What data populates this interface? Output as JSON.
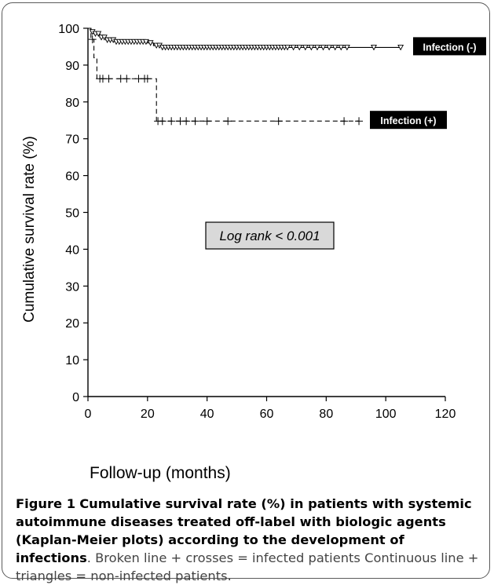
{
  "chart_data": {
    "type": "line",
    "ylabel": "Cumulative survival rate (%)",
    "xlabel": "Follow-up (months)",
    "xlim": [
      0,
      120
    ],
    "ylim": [
      0,
      100
    ],
    "x_ticks": [
      "0",
      "20",
      "40",
      "60",
      "80",
      "100",
      "120"
    ],
    "y_ticks": [
      "0",
      "10",
      "20",
      "30",
      "40",
      "50",
      "60",
      "70",
      "80",
      "90",
      "100"
    ],
    "grid": false,
    "legend": "labels at line ends",
    "annotation": "Log rank < 0.001",
    "series": [
      {
        "name": "Infection (-)",
        "style": "solid",
        "marker": "triangle",
        "steps": [
          [
            0,
            100
          ],
          [
            1,
            99
          ],
          [
            2,
            98.5
          ],
          [
            4,
            97.5
          ],
          [
            6,
            96.8
          ],
          [
            9,
            96.3
          ],
          [
            20,
            96
          ],
          [
            22,
            95.3
          ],
          [
            25,
            94.8
          ]
        ],
        "end_x": 105,
        "censored_x": [
          1.5,
          2.5,
          3.5,
          4.5,
          5.5,
          6.5,
          7.5,
          8.5,
          9.5,
          10.5,
          11.5,
          12.5,
          13.5,
          14.5,
          15.5,
          16.5,
          17.5,
          18.5,
          19.5,
          21,
          23,
          24,
          25,
          26,
          27,
          28,
          29,
          30,
          31,
          32,
          33,
          34,
          35,
          36,
          37,
          38,
          39,
          40,
          41,
          42,
          43,
          44,
          45,
          46,
          47,
          48,
          49,
          50,
          51,
          52,
          53,
          54,
          55,
          56,
          57,
          58,
          59,
          60,
          61,
          62,
          63,
          64,
          65,
          66,
          67,
          69,
          71,
          73,
          75,
          77,
          79,
          81,
          83,
          85,
          87,
          96,
          105
        ]
      },
      {
        "name": "Infection (+)",
        "style": "dashed",
        "marker": "cross",
        "steps": [
          [
            0,
            100
          ],
          [
            1,
            97
          ],
          [
            2,
            92
          ],
          [
            3,
            86.3
          ],
          [
            23,
            74.8
          ]
        ],
        "end_x": 91,
        "censored_x": [
          1.5,
          4,
          5,
          7,
          11,
          13,
          17,
          19,
          20,
          23.5,
          25,
          28,
          31,
          33,
          36,
          40,
          47,
          64,
          86,
          91
        ]
      }
    ]
  },
  "figure": {
    "caption_label": "Figure 1",
    "caption_title": "Cumulative survival rate (%) in patients with systemic autoimmune diseases treated off-label with biologic agents (Kaplan-Meier plots) according to the development of infections",
    "caption_text": ". Broken line + crosses = infected patients Continuous line + triangles = non-infected patients."
  }
}
